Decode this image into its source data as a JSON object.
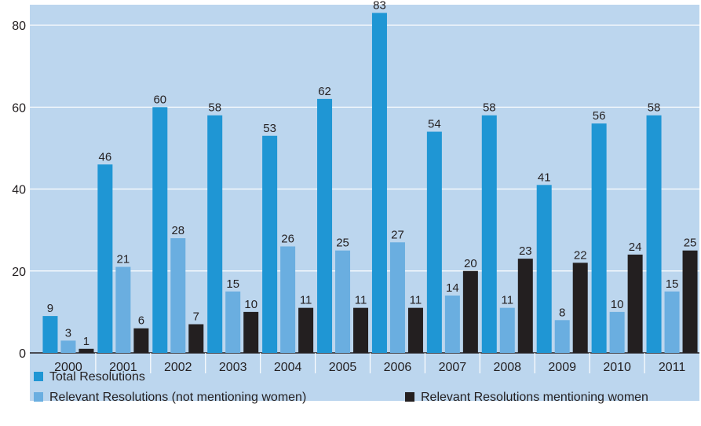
{
  "chart_data": {
    "type": "bar",
    "categories": [
      "2000",
      "2001",
      "2002",
      "2003",
      "2004",
      "2005",
      "2006",
      "2007",
      "2008",
      "2009",
      "2010",
      "2011"
    ],
    "series": [
      {
        "name": "Total Resolutions",
        "values": [
          9,
          46,
          60,
          58,
          53,
          62,
          83,
          54,
          58,
          41,
          56,
          58
        ],
        "color": "#1f96d4"
      },
      {
        "name": "Relevant Resolutions (not mentioning women)",
        "values": [
          3,
          21,
          28,
          15,
          26,
          25,
          27,
          14,
          11,
          8,
          10,
          15
        ],
        "color": "#6aaee0"
      },
      {
        "name": "Relevant Resolutions mentioning women",
        "values": [
          1,
          6,
          7,
          10,
          11,
          11,
          11,
          20,
          23,
          22,
          24,
          25
        ],
        "color": "#231f20"
      }
    ],
    "yticks": [
      0,
      20,
      40,
      60,
      80
    ],
    "ylim": [
      0,
      85
    ],
    "grid": true,
    "legend_position": "bottom",
    "colors": {
      "plot_background": "#bcd6ee",
      "grid": "#ffffff",
      "axis": "#231f20",
      "text": "#231f20"
    }
  }
}
